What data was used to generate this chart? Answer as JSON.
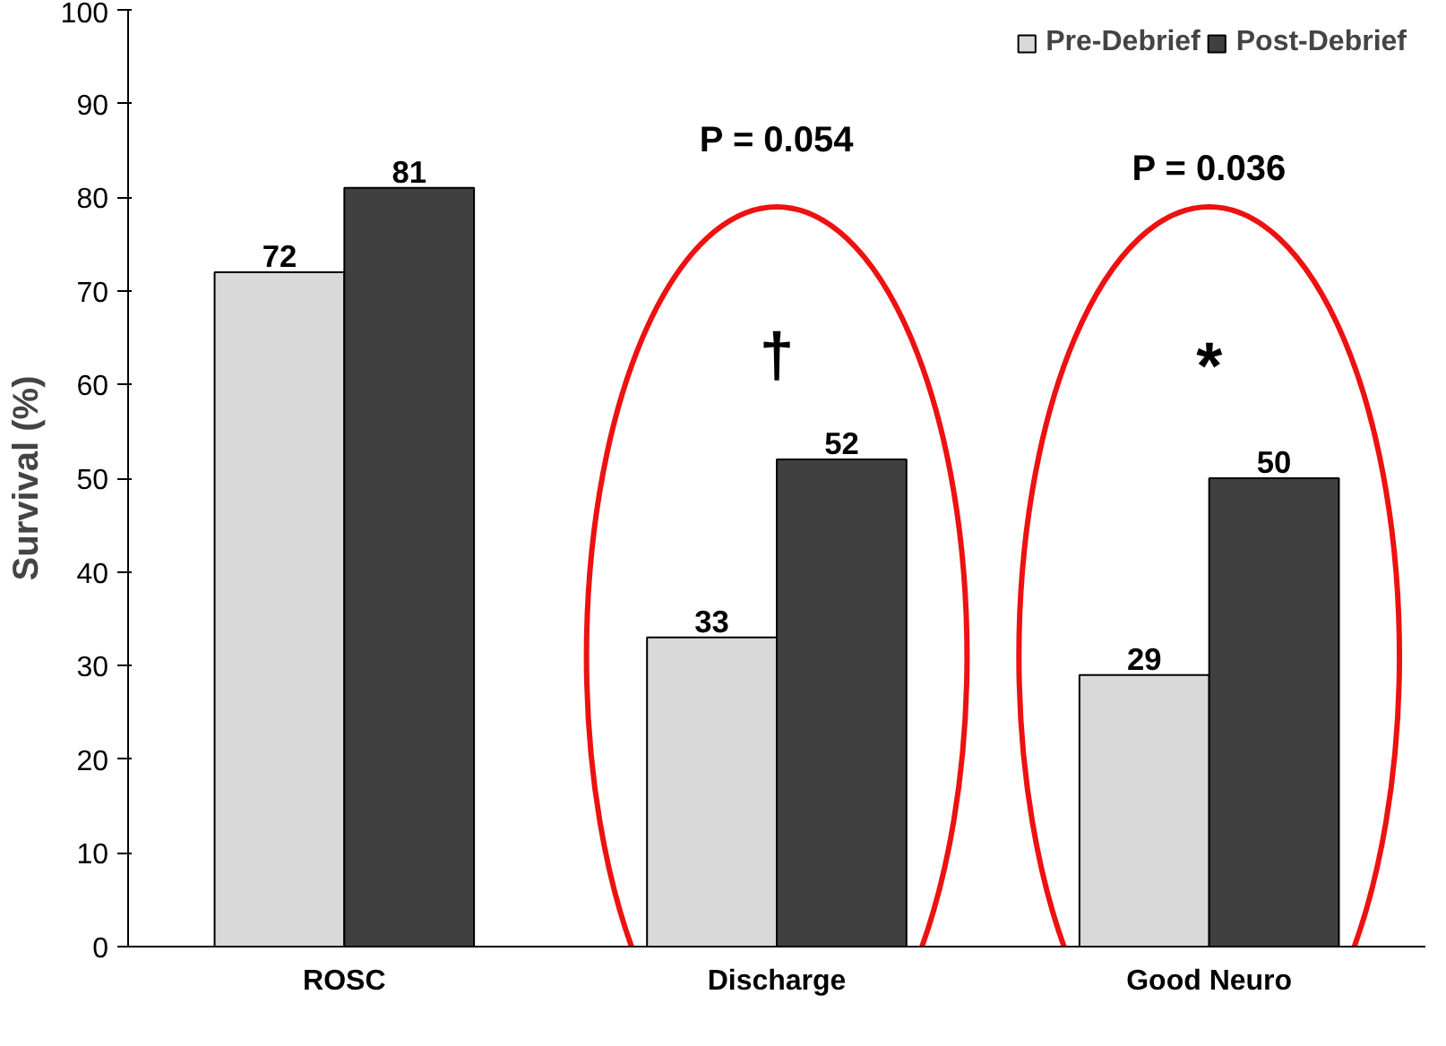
{
  "chart_data": {
    "type": "bar",
    "ylabel": "Survival (%)",
    "categories": [
      "ROSC",
      "Discharge",
      "Good Neuro"
    ],
    "series": [
      {
        "name": "Pre-Debrief",
        "color": "#d9d9d9",
        "values": [
          72,
          33,
          29
        ]
      },
      {
        "name": "Post-Debrief",
        "color": "#404040",
        "values": [
          81,
          52,
          50
        ]
      }
    ],
    "ylim": [
      0,
      100
    ],
    "yticks": [
      0,
      10,
      20,
      30,
      40,
      50,
      60,
      70,
      80,
      90,
      100
    ],
    "data_labels": true,
    "legend": "top right",
    "grid": false,
    "annotations": [
      "P = 0.054",
      "P = 0.036",
      "†",
      "*"
    ]
  }
}
